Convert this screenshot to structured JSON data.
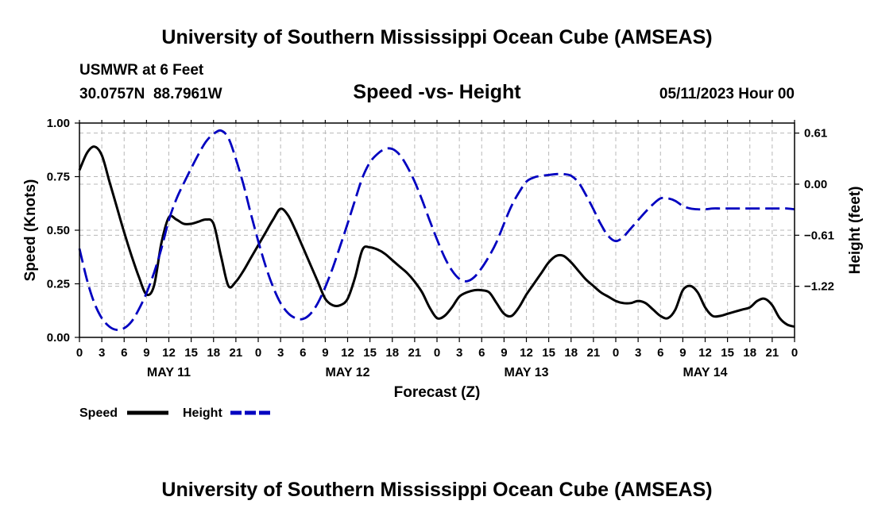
{
  "header": {
    "main_title": "University of Southern Mississippi Ocean Cube (AMSEAS)",
    "station": "USMWR at 6 Feet",
    "location": "30.0757N  88.7961W",
    "chart_title": "Speed -vs- Height",
    "date": "05/11/2023 Hour 00"
  },
  "footer": {
    "title": "University of Southern Mississippi Ocean Cube (AMSEAS)"
  },
  "chart_data": {
    "type": "line",
    "title": "Speed -vs- Height",
    "xlabel": "Forecast (Z)",
    "ylabel": "Speed (Knots)",
    "ylabel_right": "Height (feet)",
    "grid": true,
    "x_unit": "hours from 05/11/2023 00Z",
    "xlim": [
      0,
      96
    ],
    "ylim": [
      0,
      1.0
    ],
    "ylim_right": [
      -1.83,
      0.73
    ],
    "x_ticks": [
      0,
      3,
      6,
      9,
      12,
      15,
      18,
      21,
      24,
      27,
      30,
      33,
      36,
      39,
      42,
      45,
      48,
      51,
      54,
      57,
      60,
      63,
      66,
      69,
      72,
      75,
      78,
      81,
      84,
      87,
      90,
      93,
      96
    ],
    "x_tick_labels": [
      "0",
      "3",
      "6",
      "9",
      "12",
      "15",
      "18",
      "21",
      "0",
      "3",
      "6",
      "9",
      "12",
      "15",
      "18",
      "21",
      "0",
      "3",
      "6",
      "9",
      "12",
      "15",
      "18",
      "21",
      "0",
      "3",
      "6",
      "9",
      "12",
      "15",
      "18",
      "21",
      "0"
    ],
    "day_labels": [
      {
        "x": 12,
        "label": "MAY 11"
      },
      {
        "x": 36,
        "label": "MAY 12"
      },
      {
        "x": 60,
        "label": "MAY 13"
      },
      {
        "x": 84,
        "label": "MAY 14"
      }
    ],
    "y_ticks": [
      0.0,
      0.25,
      0.5,
      0.75,
      1.0
    ],
    "y_tick_labels": [
      "0.00",
      "0.25",
      "0.50",
      "0.75",
      "1.00"
    ],
    "y_ticks_right": [
      0.61,
      0.0,
      -0.61,
      -1.22
    ],
    "y_tick_labels_right": [
      "0.61",
      "0.00",
      "−0.61",
      "−1.22"
    ],
    "series": [
      {
        "name": "Speed",
        "axis": "left",
        "color": "#000000",
        "dash": "solid",
        "x": [
          0,
          1,
          2,
          3,
          4,
          5,
          6,
          7,
          8,
          9,
          10,
          11,
          12,
          13,
          14,
          15,
          16,
          17,
          18,
          19,
          20,
          21,
          22,
          23,
          24,
          25,
          26,
          27,
          28,
          29,
          30,
          31,
          32,
          33,
          34,
          35,
          36,
          37,
          38,
          39,
          40,
          41,
          42,
          43,
          44,
          45,
          46,
          47,
          48,
          49,
          50,
          51,
          52,
          53,
          54,
          55,
          56,
          57,
          58,
          59,
          60,
          61,
          62,
          63,
          64,
          65,
          66,
          67,
          68,
          69,
          70,
          71,
          72,
          73,
          74,
          75,
          76,
          77,
          78,
          79,
          80,
          81,
          82,
          83,
          84,
          85,
          86,
          87,
          88,
          89,
          90,
          91,
          92,
          93,
          94,
          95,
          96
        ],
        "values": [
          0.78,
          0.86,
          0.89,
          0.85,
          0.73,
          0.61,
          0.49,
          0.38,
          0.28,
          0.2,
          0.24,
          0.44,
          0.56,
          0.55,
          0.53,
          0.53,
          0.54,
          0.55,
          0.53,
          0.38,
          0.24,
          0.26,
          0.31,
          0.37,
          0.43,
          0.49,
          0.55,
          0.6,
          0.57,
          0.5,
          0.42,
          0.34,
          0.26,
          0.18,
          0.15,
          0.15,
          0.18,
          0.28,
          0.41,
          0.42,
          0.41,
          0.39,
          0.36,
          0.33,
          0.3,
          0.26,
          0.21,
          0.14,
          0.09,
          0.1,
          0.14,
          0.19,
          0.21,
          0.22,
          0.22,
          0.21,
          0.16,
          0.11,
          0.1,
          0.14,
          0.2,
          0.25,
          0.3,
          0.35,
          0.38,
          0.38,
          0.35,
          0.31,
          0.27,
          0.24,
          0.21,
          0.19,
          0.17,
          0.16,
          0.16,
          0.17,
          0.16,
          0.13,
          0.1,
          0.09,
          0.13,
          0.22,
          0.24,
          0.21,
          0.14,
          0.1,
          0.1,
          0.11,
          0.12,
          0.13,
          0.14,
          0.17,
          0.18,
          0.15,
          0.09,
          0.06,
          0.05
        ]
      },
      {
        "name": "Height",
        "axis": "right",
        "color": "#0000c0",
        "dash": "dashed",
        "x": [
          0,
          1,
          2,
          3,
          4,
          5,
          6,
          7,
          8,
          9,
          10,
          11,
          12,
          13,
          14,
          15,
          16,
          17,
          18,
          19,
          20,
          21,
          22,
          23,
          24,
          25,
          26,
          27,
          28,
          29,
          30,
          31,
          32,
          33,
          34,
          35,
          36,
          37,
          38,
          39,
          40,
          41,
          42,
          43,
          44,
          45,
          46,
          47,
          48,
          49,
          50,
          51,
          52,
          53,
          54,
          55,
          56,
          57,
          58,
          59,
          60,
          61,
          62,
          63,
          64,
          65,
          66,
          67,
          68,
          69,
          70,
          71,
          72,
          73,
          74,
          75,
          76,
          77,
          78,
          79,
          80,
          81,
          82,
          83,
          84,
          85,
          86,
          87,
          88,
          89,
          90,
          91,
          92,
          93,
          94,
          95,
          96
        ],
        "values": [
          -0.77,
          -1.14,
          -1.42,
          -1.6,
          -1.7,
          -1.74,
          -1.72,
          -1.64,
          -1.49,
          -1.3,
          -1.06,
          -0.77,
          -0.43,
          -0.18,
          0.01,
          0.19,
          0.36,
          0.51,
          0.6,
          0.64,
          0.55,
          0.3,
          0.0,
          -0.35,
          -0.68,
          -0.98,
          -1.23,
          -1.42,
          -1.54,
          -1.6,
          -1.61,
          -1.55,
          -1.42,
          -1.23,
          -1.0,
          -0.74,
          -0.47,
          -0.19,
          0.08,
          0.26,
          0.36,
          0.42,
          0.42,
          0.35,
          0.21,
          0.03,
          -0.19,
          -0.43,
          -0.66,
          -0.87,
          -1.03,
          -1.13,
          -1.16,
          -1.11,
          -1.0,
          -0.86,
          -0.69,
          -0.47,
          -0.26,
          -0.1,
          0.03,
          0.08,
          0.1,
          0.11,
          0.12,
          0.12,
          0.1,
          0.02,
          -0.13,
          -0.3,
          -0.48,
          -0.62,
          -0.68,
          -0.63,
          -0.53,
          -0.43,
          -0.33,
          -0.24,
          -0.17,
          -0.17,
          -0.2,
          -0.26,
          -0.29,
          -0.3,
          -0.3,
          -0.29,
          -0.29,
          -0.29,
          -0.29,
          -0.29,
          -0.29,
          -0.29,
          -0.29,
          -0.29,
          -0.29,
          -0.29,
          -0.3
        ]
      }
    ],
    "legend": [
      {
        "label": "Speed",
        "color": "#000000",
        "dash": "solid"
      },
      {
        "label": "Height",
        "color": "#0000c0",
        "dash": "dashed"
      }
    ],
    "legend_position": "bottom-left"
  }
}
